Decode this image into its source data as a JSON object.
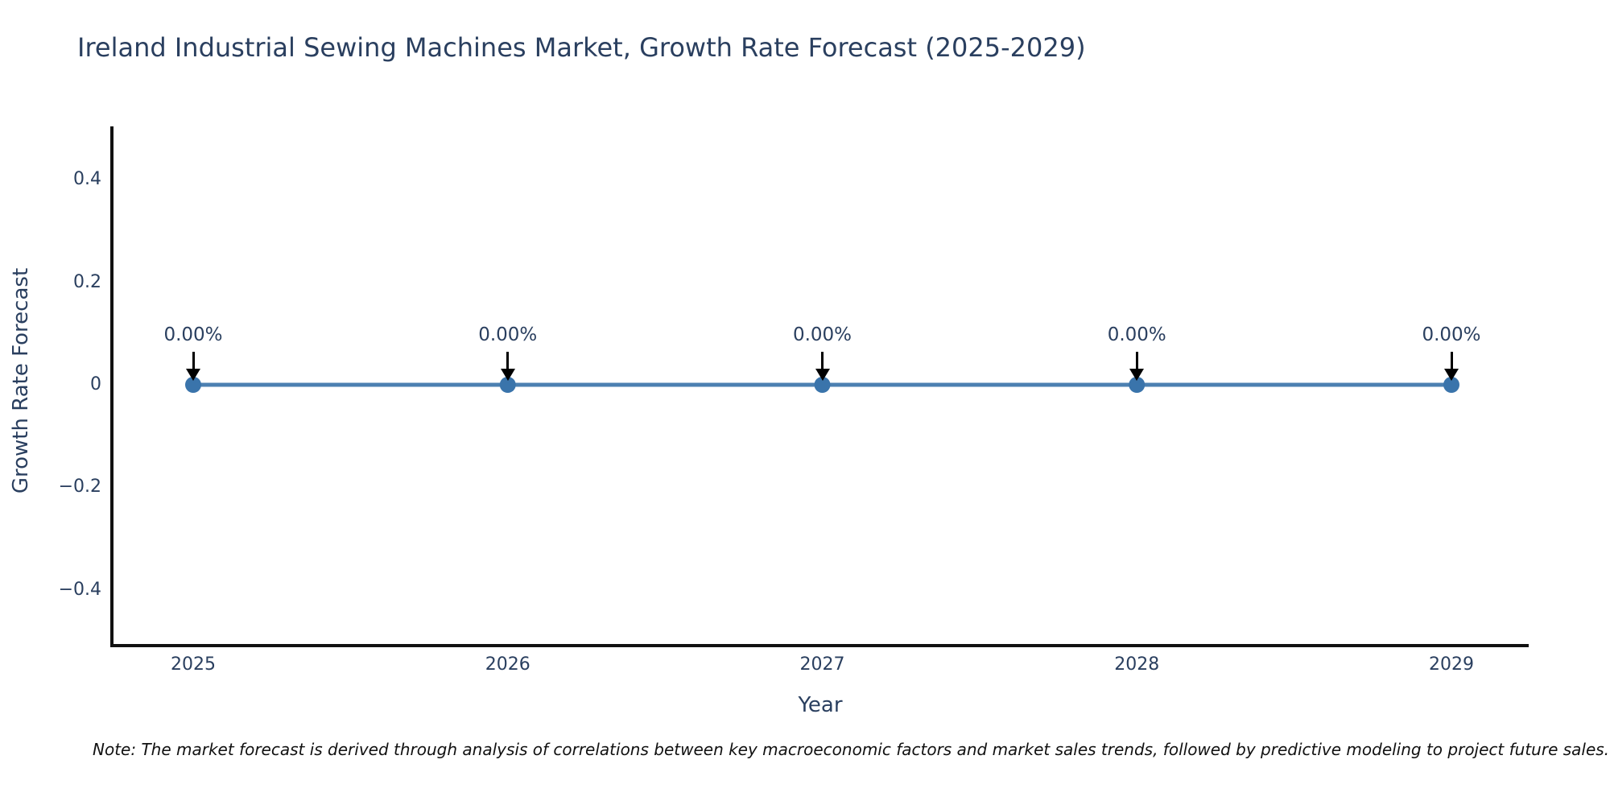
{
  "title": "Ireland Industrial Sewing Machines Market, Growth Rate Forecast (2025-2029)",
  "note": "Note: The market forecast is derived through analysis of correlations between key macroeconomic factors and market sales trends, followed by predictive modeling to project future sales.",
  "chart_data": {
    "type": "line",
    "title": "Ireland Industrial Sewing Machines Market, Growth Rate Forecast (2025-2029)",
    "xlabel": "Year",
    "ylabel": "Growth Rate Forecast",
    "categories": [
      "2025",
      "2026",
      "2027",
      "2028",
      "2029"
    ],
    "series": [
      {
        "name": "Growth Rate Forecast",
        "values": [
          0,
          0,
          0,
          0,
          0
        ],
        "point_labels": [
          "0.00%",
          "0.00%",
          "0.00%",
          "0.00%",
          "0.00%"
        ]
      }
    ],
    "yticks": [
      {
        "value": 0.4,
        "label": "0.4"
      },
      {
        "value": 0.2,
        "label": "0.2"
      },
      {
        "value": 0,
        "label": "0"
      },
      {
        "value": -0.2,
        "label": "−0.2"
      },
      {
        "value": -0.4,
        "label": "−0.4"
      }
    ],
    "ylim": [
      -0.505,
      0.505
    ],
    "grid": false,
    "legend": "none",
    "marker_size": 20,
    "line_width": 5,
    "colors": {
      "line": "#4c80b1",
      "marker": "#3a74ab",
      "axis": "#111111",
      "text": "#2a3f5f",
      "title_text": "#2a3f5f",
      "annotation_arrow": "#000000",
      "note_text": "#111111"
    }
  }
}
